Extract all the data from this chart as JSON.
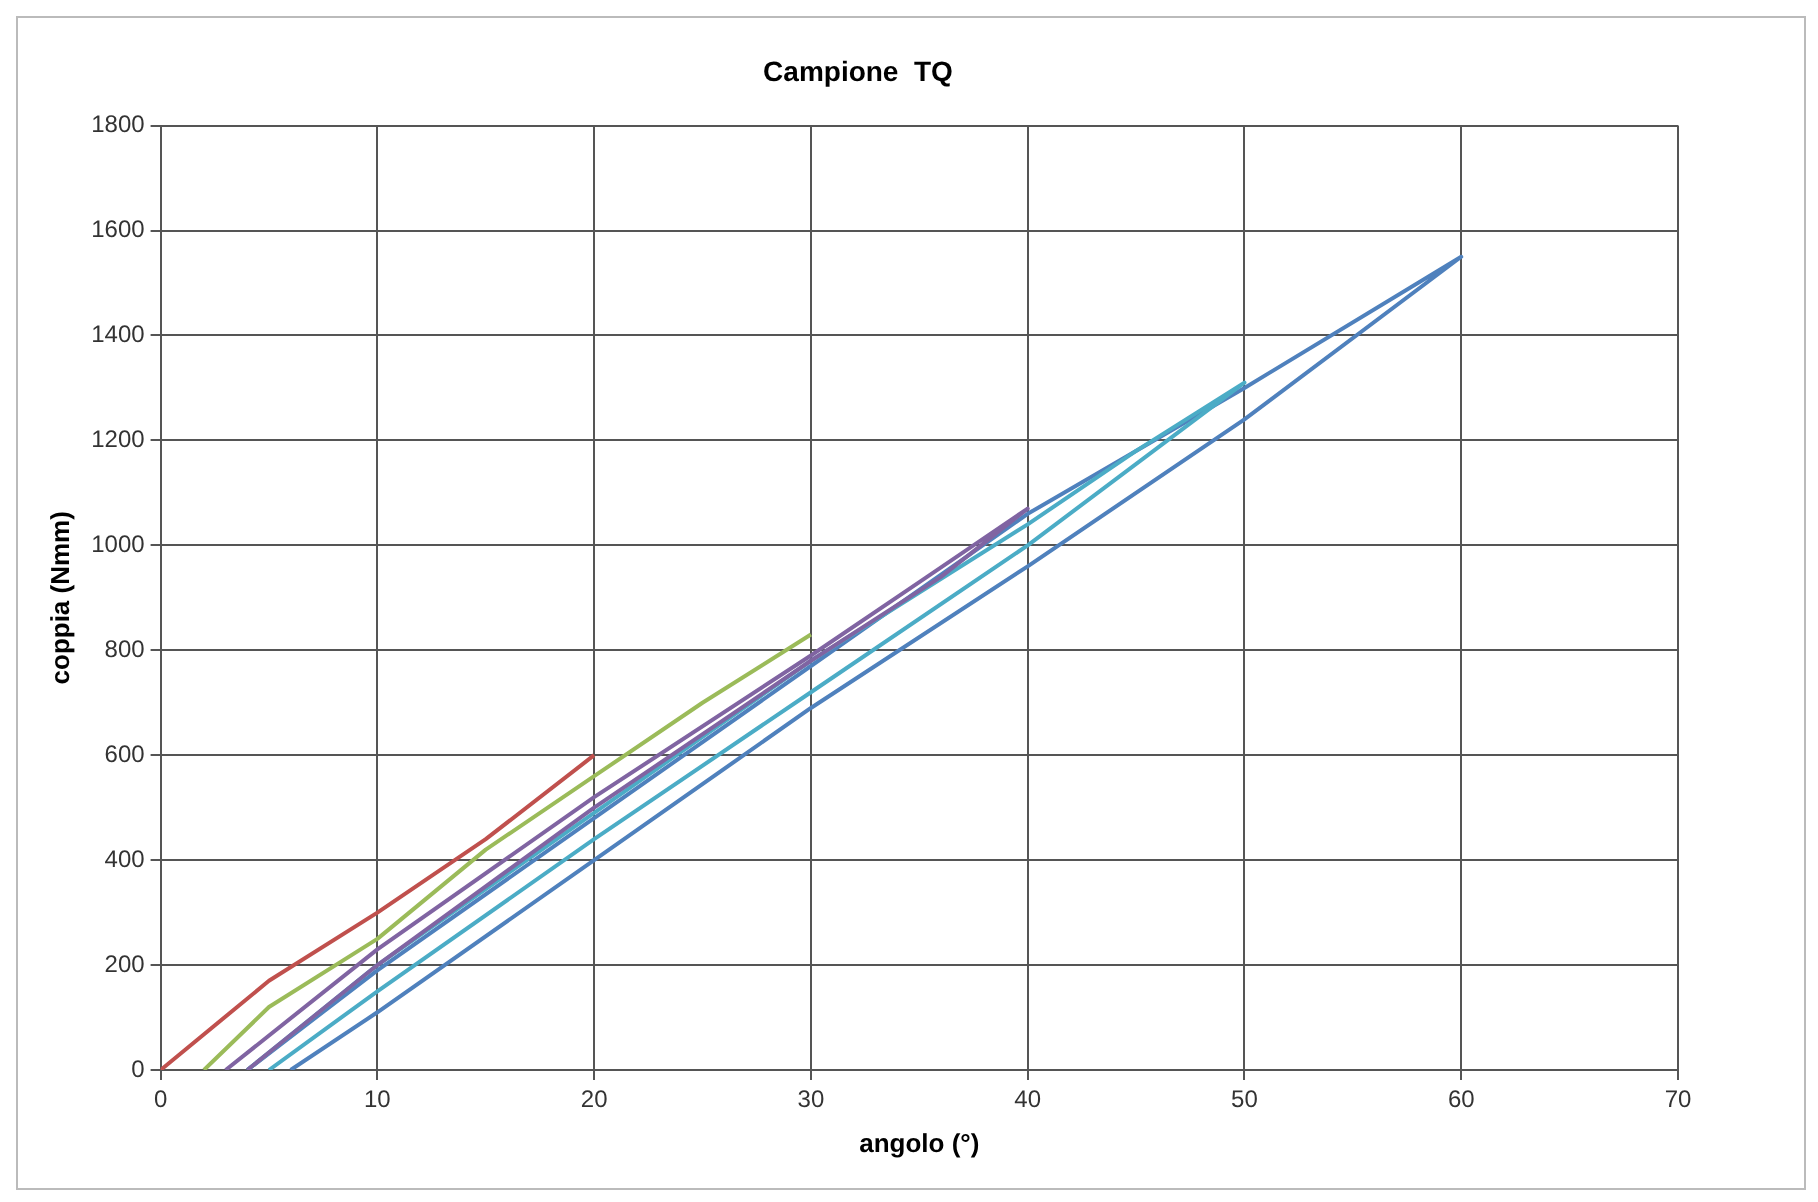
{
  "chart_data": {
    "type": "line",
    "title": "Campione  TQ",
    "xlabel": "angolo (°)",
    "ylabel": "coppia (Nmm)",
    "series": [
      {
        "color": "#c0504d",
        "x": [
          0,
          5,
          10,
          15,
          20
        ],
        "values": [
          0,
          170,
          300,
          440,
          600
        ]
      },
      {
        "color": "#9bbb59",
        "x": [
          2,
          5,
          10,
          15,
          20,
          25,
          30
        ],
        "values": [
          0,
          120,
          250,
          420,
          560,
          700,
          830
        ]
      },
      {
        "color": "#8064a2",
        "x": [
          3,
          10,
          20,
          30,
          35,
          40,
          36,
          30,
          20,
          10,
          4
        ],
        "values": [
          0,
          230,
          520,
          790,
          930,
          1070,
          940,
          780,
          500,
          200,
          0
        ]
      },
      {
        "color": "#4bacc6",
        "x": [
          4,
          10,
          20,
          30,
          40,
          45,
          50,
          40,
          30,
          20,
          10,
          5
        ],
        "values": [
          0,
          200,
          490,
          780,
          1040,
          1180,
          1310,
          1000,
          720,
          440,
          150,
          0
        ]
      },
      {
        "color": "#4f81bd",
        "x": [
          4,
          10,
          20,
          30,
          40,
          50,
          60,
          50,
          40,
          30,
          20,
          10,
          6
        ],
        "values": [
          0,
          190,
          480,
          770,
          1060,
          1300,
          1550,
          1240,
          960,
          690,
          400,
          110,
          0
        ]
      }
    ],
    "xlim": [
      0,
      70
    ],
    "xticks": [
      0,
      10,
      20,
      30,
      40,
      50,
      60,
      70
    ],
    "ylim": [
      0,
      1800
    ],
    "yticks": [
      0,
      200,
      400,
      600,
      800,
      1000,
      1200,
      1400,
      1600,
      1800
    ],
    "grid": true,
    "legend": false,
    "marker": "none",
    "line_style": "solid"
  }
}
